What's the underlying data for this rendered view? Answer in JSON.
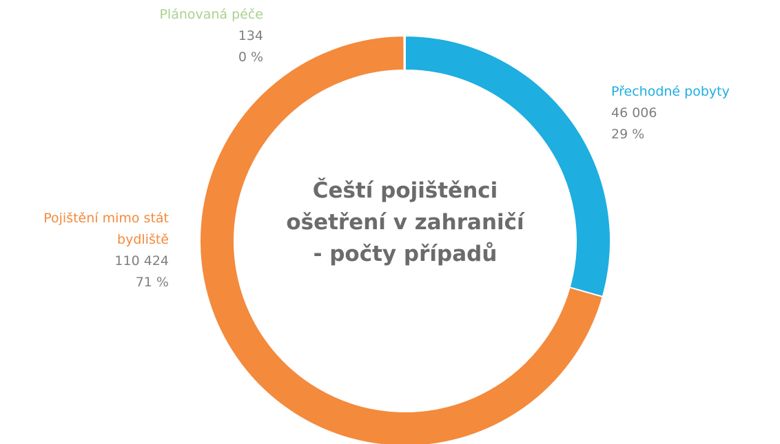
{
  "chart_data": {
    "type": "donut",
    "title": "Čeští pojištěnci ošetření v zahraničí - počty případů",
    "categories": [
      "Přechodné pobyty",
      "Pojištění mimo stát bydliště",
      "Plánovaná péče"
    ],
    "values": [
      46006,
      110424,
      134
    ],
    "value_labels": [
      "46 006",
      "110 424",
      "134"
    ],
    "percent_labels": [
      "29 %",
      "71 %",
      "0 %"
    ],
    "colors": [
      "#1eaee0",
      "#f48a3c",
      "#a9d18e"
    ]
  }
}
